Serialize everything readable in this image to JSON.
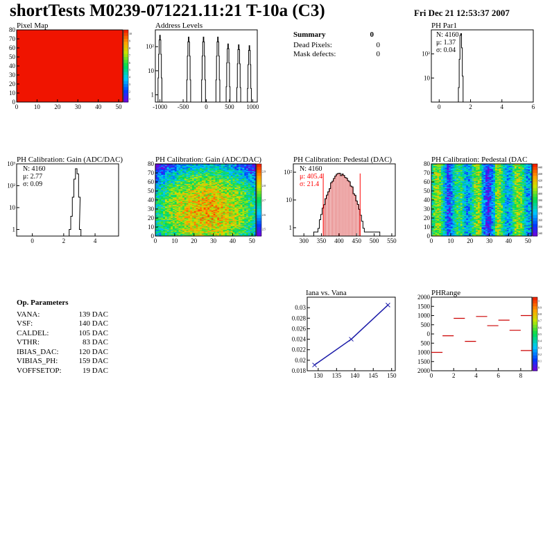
{
  "header": {
    "title": "shortTests M0239-071221.11:21 T-10a (C3)",
    "date": "Fri Dec 21 12:53:37 2007"
  },
  "colors": {
    "line": "#000000",
    "red": "#ff0000",
    "blue": "#1a1aa8",
    "cut_hatch": "#cc0000"
  },
  "summary": {
    "title": "Summary",
    "value": "0",
    "rows": [
      {
        "label": "Dead Pixels:",
        "value": "0"
      },
      {
        "label": "Mask defects:",
        "value": "0"
      }
    ]
  },
  "params": {
    "title": "Op. Parameters",
    "rows": [
      {
        "label": "VANA:",
        "value": "139 DAC"
      },
      {
        "label": "VSF:",
        "value": "140 DAC"
      },
      {
        "label": "CALDEL:",
        "value": "105 DAC"
      },
      {
        "label": "VTHR:",
        "value": "83 DAC"
      },
      {
        "label": "IBIAS_DAC:",
        "value": "120 DAC"
      },
      {
        "label": "VIBIAS_PH:",
        "value": "159 DAC"
      },
      {
        "label": "VOFFSETOP:",
        "value": "19 DAC"
      }
    ]
  },
  "chart_data": [
    {
      "id": "pixel-map",
      "type": "heatmap",
      "title": "Pixel Map",
      "xlim": [
        0,
        52
      ],
      "ylim": [
        0,
        80
      ],
      "xticks": [
        0,
        10,
        20,
        30,
        40,
        50
      ],
      "yticks": [
        0,
        10,
        20,
        30,
        40,
        50,
        60,
        70,
        80
      ],
      "fill": "uniform",
      "value": 10,
      "zlim": [
        0,
        10
      ],
      "zticks": [
        "10",
        "9",
        "8",
        "7",
        "6",
        "5",
        "4",
        "3",
        "2",
        "1"
      ]
    },
    {
      "id": "address-levels",
      "type": "line",
      "title": "Address Levels",
      "log_y": true,
      "xlim": [
        -1100,
        1100
      ],
      "ylim": [
        0.5,
        500
      ],
      "xticks": [
        -1000,
        -500,
        0,
        500,
        1000
      ],
      "xtick_labels": [
        "-1000",
        "-500",
        "0",
        "500",
        "1000"
      ],
      "yticks": [
        1,
        10,
        100
      ],
      "ytick_labels": [
        "1",
        "10",
        "10²"
      ],
      "peaks": [
        {
          "x": -1000,
          "height": 300
        },
        {
          "x": -380,
          "height": 250
        },
        {
          "x": -60,
          "height": 250
        },
        {
          "x": 250,
          "height": 250
        },
        {
          "x": 470,
          "height": 130
        },
        {
          "x": 700,
          "height": 120
        },
        {
          "x": 930,
          "height": 110
        }
      ]
    },
    {
      "id": "ph-par1",
      "type": "line",
      "title": "PH Par1",
      "log_y": true,
      "xlim": [
        -0.5,
        6
      ],
      "ylim": [
        1,
        1000
      ],
      "xticks": [
        0,
        2,
        4,
        6
      ],
      "yticks": [
        10,
        100
      ],
      "ytick_labels": [
        "10",
        "10²"
      ],
      "stats": [
        "N: 4160",
        "μ: 1.37",
        "σ: 0.04"
      ],
      "bins": [
        {
          "x": 1.25,
          "y": 4
        },
        {
          "x": 1.3,
          "y": 60
        },
        {
          "x": 1.35,
          "y": 600
        },
        {
          "x": 1.4,
          "y": 700
        },
        {
          "x": 1.45,
          "y": 180
        },
        {
          "x": 1.5,
          "y": 12
        }
      ]
    },
    {
      "id": "ph-gain",
      "type": "line",
      "title": "PH Calibration: Gain (ADC/DAC)",
      "log_y": true,
      "xlim": [
        -1,
        5.5
      ],
      "ylim": [
        0.5,
        1000
      ],
      "xticks": [
        0,
        2,
        4
      ],
      "yticks": [
        1,
        10,
        100,
        1000
      ],
      "ytick_labels": [
        "1",
        "10",
        "10²",
        "10³"
      ],
      "stats": [
        "N: 4160",
        "μ: 2.77",
        "σ: 0.09"
      ],
      "bins": [
        {
          "x": 2.4,
          "y": 1
        },
        {
          "x": 2.5,
          "y": 4
        },
        {
          "x": 2.6,
          "y": 30
        },
        {
          "x": 2.7,
          "y": 200
        },
        {
          "x": 2.8,
          "y": 600
        },
        {
          "x": 2.9,
          "y": 350
        },
        {
          "x": 3.0,
          "y": 30
        },
        {
          "x": 3.05,
          "y": 1
        }
      ]
    },
    {
      "id": "ph-gain-map",
      "type": "heatmap",
      "title": "PH Calibration: Gain (ADC/DAC)",
      "xlim": [
        0,
        52
      ],
      "ylim": [
        0,
        80
      ],
      "xticks": [
        0,
        10,
        20,
        30,
        40,
        50
      ],
      "yticks": [
        0,
        10,
        20,
        30,
        40,
        50,
        60,
        70,
        80
      ],
      "zlim": [
        2.5,
        3.0
      ],
      "zticks": [
        "2.9",
        "2.8",
        "2.7",
        "2.6",
        "2.5"
      ]
    },
    {
      "id": "ph-pedestal",
      "type": "line",
      "title": "PH Calibration: Pedestal (DAC)",
      "log_y": true,
      "xlim": [
        270,
        560
      ],
      "ylim": [
        0.5,
        200
      ],
      "xticks": [
        300,
        350,
        400,
        450,
        500,
        550
      ],
      "yticks": [
        1,
        10,
        100
      ],
      "ytick_labels": [
        "1",
        "10",
        "10²"
      ],
      "stats": [
        "N: 4160",
        "μ: 405.4",
        "σ: 21.4"
      ],
      "cut_lines": [
        355,
        460
      ],
      "peak": {
        "mean": 405.4,
        "sigma": 21.4,
        "max": 85
      },
      "range": [
        330,
        515
      ]
    },
    {
      "id": "ph-pedestal-map",
      "type": "heatmap",
      "title": "PH Calibration: Pedestal (DAC",
      "xlim": [
        0,
        52
      ],
      "ylim": [
        0,
        80
      ],
      "xticks": [
        0,
        10,
        20,
        30,
        40,
        50
      ],
      "yticks": [
        0,
        10,
        20,
        30,
        40,
        50,
        60,
        70,
        80
      ],
      "zlim": [
        340,
        450
      ],
      "zticks": [
        "440",
        "430",
        "420",
        "410",
        "400",
        "390",
        "380",
        "370",
        "360",
        "350",
        "340"
      ]
    },
    {
      "id": "iana-vana",
      "type": "line",
      "title": "Iana vs. Vana",
      "xlim": [
        127,
        151
      ],
      "ylim": [
        0.018,
        0.032
      ],
      "xticks": [
        130,
        135,
        140,
        145,
        150
      ],
      "yticks": [
        0.018,
        0.02,
        0.022,
        0.024,
        0.026,
        0.028,
        0.03
      ],
      "ytick_labels": [
        "0.018",
        "0.02",
        "0.022",
        "0.024",
        "0.026",
        "0.028",
        "0.03"
      ],
      "x": [
        129,
        139,
        149
      ],
      "y": [
        0.0191,
        0.024,
        0.0305
      ]
    },
    {
      "id": "ph-range",
      "type": "scatter",
      "title": "PHRange",
      "xlim": [
        0,
        9
      ],
      "ylim": [
        -2000,
        2000
      ],
      "xticks": [
        0,
        2,
        4,
        6,
        8
      ],
      "yticks": [
        -2000,
        -1500,
        -1000,
        -500,
        0,
        500,
        1000,
        1500,
        2000
      ],
      "ytick_labels": [
        "2000",
        "1500",
        "1000",
        "500",
        "0",
        "500",
        "1000",
        "1500",
        "2000"
      ],
      "segments": [
        {
          "x": 0.5,
          "y": -1000
        },
        {
          "x": 1.5,
          "y": -100
        },
        {
          "x": 2.5,
          "y": 850
        },
        {
          "x": 3.5,
          "y": -400
        },
        {
          "x": 4.5,
          "y": 950
        },
        {
          "x": 5.5,
          "y": 450
        },
        {
          "x": 6.5,
          "y": 750
        },
        {
          "x": 7.5,
          "y": 200
        },
        {
          "x": 8.5,
          "y": 1000
        },
        {
          "x": 8.5,
          "y": -900
        }
      ],
      "zlim": [
        0,
        1
      ],
      "zticks": [
        "1",
        "0.9",
        "0.8",
        "0.7",
        "0.6",
        "0.5",
        "0.4",
        "0.3",
        "0.2",
        "0.1",
        "0"
      ]
    }
  ]
}
